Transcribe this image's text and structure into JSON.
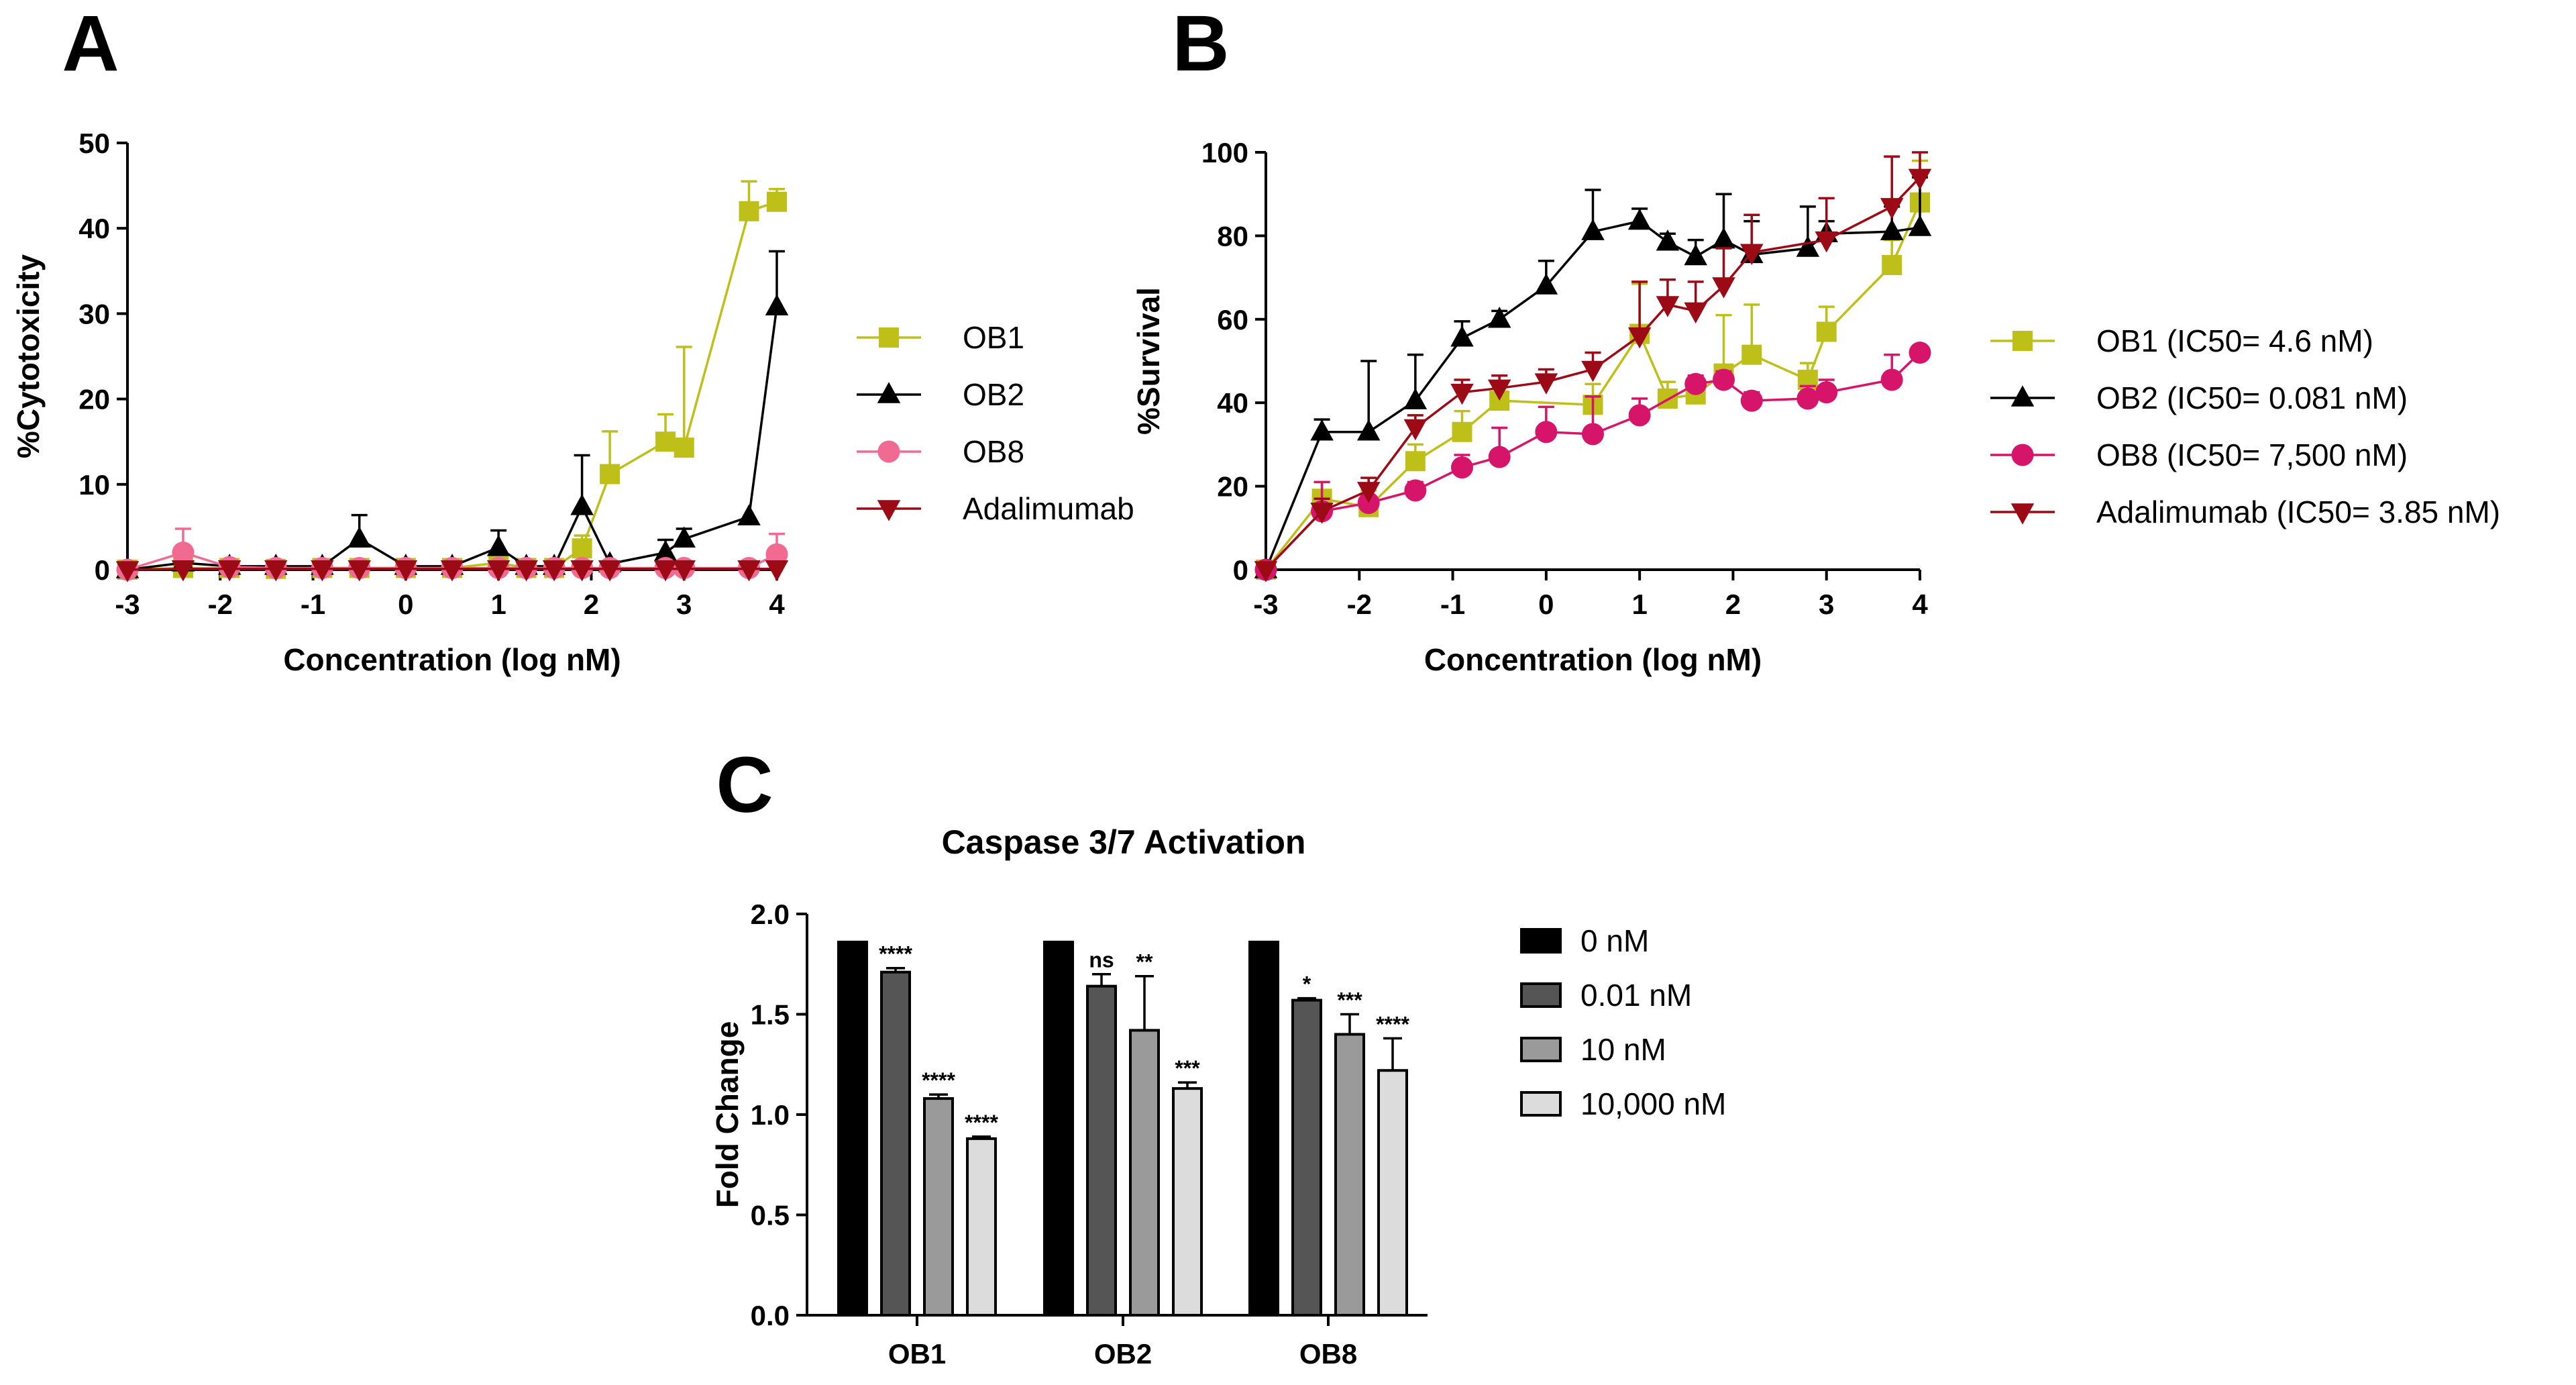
{
  "colors": {
    "OB1": "#bfbf1a",
    "OB2": "#000000",
    "OB8_A": "#f06a92",
    "OB8_B": "#d6156a",
    "Adalimumab": "#9c0a16",
    "bar0": "#000000",
    "bar1": "#555555",
    "bar2": "#9a9a9a",
    "bar3": "#dcdcdc"
  },
  "chart_data": [
    {
      "id": "A",
      "panel_letter": "A",
      "type": "line",
      "title": "",
      "xlabel": "Concentration (log nM)",
      "ylabel": "%Cytotoxicity",
      "xlim": [
        -3,
        4
      ],
      "ylim": [
        0,
        50
      ],
      "xticks": [
        "-3",
        "-2",
        "-1",
        "0",
        "1",
        "2",
        "3",
        "4"
      ],
      "xtick_values": [
        -3,
        -2,
        -1,
        0,
        1,
        2,
        3,
        4
      ],
      "yticks": [
        "0",
        "10",
        "20",
        "30",
        "40",
        "50"
      ],
      "ytick_values": [
        0,
        10,
        20,
        30,
        40,
        50
      ],
      "legend_position": "right",
      "series": [
        {
          "name": "OB1",
          "color_key": "OB1",
          "marker": "square",
          "points": [
            [
              -3,
              0,
              0
            ],
            [
              -2.4,
              0.2,
              0
            ],
            [
              -1.9,
              0.2,
              0
            ],
            [
              -1.4,
              0.1,
              0
            ],
            [
              -0.9,
              0.2,
              0
            ],
            [
              -0.5,
              0.2,
              0
            ],
            [
              0,
              0.2,
              0
            ],
            [
              0.5,
              0.2,
              0
            ],
            [
              1,
              0.8,
              0
            ],
            [
              1.3,
              0.2,
              0
            ],
            [
              1.6,
              0.2,
              0
            ],
            [
              1.9,
              2.5,
              1.5
            ],
            [
              2.2,
              11.2,
              5
            ],
            [
              2.8,
              15,
              3.2
            ],
            [
              3,
              14.3,
              11.8
            ],
            [
              3.7,
              42,
              3.5
            ],
            [
              4,
              43.1,
              1.5
            ]
          ]
        },
        {
          "name": "OB2",
          "color_key": "OB2",
          "marker": "triangle",
          "points": [
            [
              -3,
              0,
              0
            ],
            [
              -2.4,
              0.8,
              0
            ],
            [
              -1.9,
              0.4,
              0
            ],
            [
              -1.4,
              0.4,
              0
            ],
            [
              -0.9,
              0.4,
              0
            ],
            [
              -0.5,
              3.6,
              2.8
            ],
            [
              0,
              0.4,
              0
            ],
            [
              0.5,
              0.4,
              0
            ],
            [
              1,
              2.6,
              2
            ],
            [
              1.3,
              0.4,
              0
            ],
            [
              1.6,
              0.4,
              0
            ],
            [
              1.9,
              7.4,
              6
            ],
            [
              2.2,
              0.7,
              0
            ],
            [
              2.8,
              2,
              1.5
            ],
            [
              3,
              3.6,
              1.2
            ],
            [
              3.7,
              6.2,
              0
            ],
            [
              4,
              30.8,
              6.5
            ]
          ]
        },
        {
          "name": "OB8",
          "color_key": "OB8_A",
          "marker": "circle",
          "points": [
            [
              -3,
              0,
              0
            ],
            [
              -2.4,
              2,
              2.8
            ],
            [
              -1.9,
              0.3,
              0
            ],
            [
              -1.4,
              0.2,
              0
            ],
            [
              -0.9,
              0.2,
              0
            ],
            [
              -0.5,
              0.2,
              0
            ],
            [
              0,
              0.2,
              0
            ],
            [
              0.5,
              0.2,
              0
            ],
            [
              1,
              0.2,
              0
            ],
            [
              1.3,
              0.2,
              0
            ],
            [
              1.6,
              0.2,
              0
            ],
            [
              1.9,
              0.2,
              0
            ],
            [
              2.2,
              0.2,
              0
            ],
            [
              2.8,
              0.2,
              0
            ],
            [
              3,
              0.2,
              0
            ],
            [
              3.7,
              0.2,
              0
            ],
            [
              4,
              1.8,
              2.4
            ]
          ]
        },
        {
          "name": "Adalimumab",
          "color_key": "Adalimumab",
          "marker": "triangle-down",
          "points": [
            [
              -3,
              0,
              0
            ],
            [
              -2.4,
              0.1,
              0
            ],
            [
              -1.9,
              0.1,
              0
            ],
            [
              -1.4,
              0.1,
              0
            ],
            [
              -0.9,
              0.1,
              0
            ],
            [
              -0.5,
              0.1,
              0
            ],
            [
              0,
              0.1,
              0
            ],
            [
              0.5,
              0.1,
              0
            ],
            [
              1,
              0.1,
              0
            ],
            [
              1.3,
              0.1,
              0
            ],
            [
              1.6,
              0.1,
              0
            ],
            [
              1.9,
              0.1,
              0
            ],
            [
              2.2,
              0.1,
              0
            ],
            [
              2.8,
              0.1,
              0
            ],
            [
              3,
              0.1,
              0
            ],
            [
              3.7,
              0.1,
              0
            ],
            [
              4,
              0.1,
              0
            ]
          ]
        }
      ]
    },
    {
      "id": "B",
      "panel_letter": "B",
      "type": "line",
      "title": "",
      "xlabel": "Concentration (log nM)",
      "ylabel": "%Survival",
      "xlim": [
        -3,
        4
      ],
      "ylim": [
        0,
        100
      ],
      "xticks": [
        "-3",
        "-2",
        "-1",
        "0",
        "1",
        "2",
        "3",
        "4"
      ],
      "xtick_values": [
        -3,
        -2,
        -1,
        0,
        1,
        2,
        3,
        4
      ],
      "yticks": [
        "0",
        "20",
        "40",
        "60",
        "80",
        "100"
      ],
      "ytick_values": [
        0,
        20,
        40,
        60,
        80,
        100
      ],
      "legend_position": "right",
      "series": [
        {
          "name": "OB1 (IC50= 4.6 nM)",
          "color_key": "OB1",
          "marker": "square",
          "points": [
            [
              -3,
              0,
              0
            ],
            [
              -2.4,
              17,
              4
            ],
            [
              -1.9,
              15,
              4
            ],
            [
              -1.4,
              26,
              4
            ],
            [
              -0.9,
              33,
              5
            ],
            [
              -0.5,
              40.5,
              6
            ],
            [
              0.5,
              39.5,
              5
            ],
            [
              1,
              56.5,
              12
            ],
            [
              1.3,
              41,
              4
            ],
            [
              1.6,
              42,
              4
            ],
            [
              1.9,
              47,
              14
            ],
            [
              2.2,
              51.5,
              12
            ],
            [
              2.8,
              45.5,
              4
            ],
            [
              3,
              57,
              6
            ],
            [
              3.7,
              73,
              6
            ],
            [
              4,
              88,
              10
            ]
          ]
        },
        {
          "name": "OB2 (IC50= 0.081 nM)",
          "color_key": "OB2",
          "marker": "triangle",
          "points": [
            [
              -3,
              0,
              0
            ],
            [
              -2.4,
              33,
              3
            ],
            [
              -1.9,
              33,
              17
            ],
            [
              -1.4,
              40.5,
              11
            ],
            [
              -0.9,
              55.5,
              4
            ],
            [
              -0.5,
              60,
              2
            ],
            [
              0,
              68,
              6
            ],
            [
              0.5,
              81,
              10
            ],
            [
              1,
              83.5,
              3
            ],
            [
              1.3,
              78.5,
              2
            ],
            [
              1.6,
              75,
              4
            ],
            [
              1.9,
              79,
              11
            ],
            [
              2.2,
              75.5,
              8
            ],
            [
              2.8,
              77,
              10
            ],
            [
              3,
              80.5,
              3
            ],
            [
              3.7,
              81,
              6
            ],
            [
              4,
              82,
              12
            ]
          ]
        },
        {
          "name": "OB8 (IC50= 7,500 nM)",
          "color_key": "OB8_B",
          "marker": "circle",
          "points": [
            [
              -3,
              0,
              0
            ],
            [
              -2.4,
              14,
              7
            ],
            [
              -1.9,
              16,
              4
            ],
            [
              -1.4,
              19,
              2
            ],
            [
              -0.9,
              24.5,
              3
            ],
            [
              -0.5,
              27,
              7
            ],
            [
              0,
              33,
              6
            ],
            [
              0.5,
              32.5,
              9
            ],
            [
              1,
              37,
              4
            ],
            [
              1.6,
              44.5,
              2
            ],
            [
              1.9,
              45.5,
              2
            ],
            [
              2.2,
              40.5,
              2
            ],
            [
              2.8,
              41,
              3
            ],
            [
              3,
              42.5,
              3
            ],
            [
              3.7,
              45.5,
              6
            ],
            [
              4,
              52,
              0
            ]
          ]
        },
        {
          "name": "Adalimumab (IC50= 3.85 nM)",
          "color_key": "Adalimumab",
          "marker": "triangle-down",
          "points": [
            [
              -3,
              0,
              0
            ],
            [
              -2.4,
              14,
              3
            ],
            [
              -1.9,
              19,
              3
            ],
            [
              -1.4,
              34,
              3
            ],
            [
              -0.9,
              42.5,
              3
            ],
            [
              -0.5,
              43.5,
              3
            ],
            [
              0,
              45,
              3
            ],
            [
              0.5,
              48,
              4
            ],
            [
              1,
              56,
              13
            ],
            [
              1.3,
              63.5,
              6
            ],
            [
              1.6,
              62,
              7
            ],
            [
              1.9,
              68,
              9
            ],
            [
              2.2,
              76,
              9
            ],
            [
              3,
              79,
              10
            ],
            [
              3.7,
              87,
              12
            ],
            [
              4,
              94,
              6
            ]
          ]
        }
      ]
    },
    {
      "id": "C",
      "panel_letter": "C",
      "type": "bar",
      "title": "Caspase 3/7 Activation",
      "xlabel": "",
      "ylabel": "Fold Change",
      "ylim": [
        0,
        2
      ],
      "yticks": [
        "0.0",
        "0.5",
        "1.0",
        "1.5",
        "2.0"
      ],
      "ytick_values": [
        0,
        0.5,
        1,
        1.5,
        2
      ],
      "categories": [
        "OB1",
        "OB2",
        "OB8"
      ],
      "legend_position": "right",
      "series": [
        {
          "name": "0 nM",
          "color_key": "bar0",
          "values": [
            1.86,
            1.86,
            1.86
          ],
          "errors": [
            0,
            0,
            0
          ],
          "significance": [
            "",
            "",
            ""
          ]
        },
        {
          "name": "0.01 nM",
          "color_key": "bar1",
          "values": [
            1.71,
            1.64,
            1.57
          ],
          "errors": [
            0.02,
            0.06,
            0.01
          ],
          "significance": [
            "****",
            "ns",
            "*"
          ]
        },
        {
          "name": "10 nM",
          "color_key": "bar2",
          "values": [
            1.08,
            1.42,
            1.4
          ],
          "errors": [
            0.02,
            0.27,
            0.1
          ],
          "significance": [
            "****",
            "**",
            "***"
          ]
        },
        {
          "name": "10,000 nM",
          "color_key": "bar3",
          "values": [
            0.88,
            1.13,
            1.22
          ],
          "errors": [
            0.01,
            0.03,
            0.16
          ],
          "significance": [
            "****",
            "***",
            "****"
          ]
        }
      ]
    }
  ]
}
